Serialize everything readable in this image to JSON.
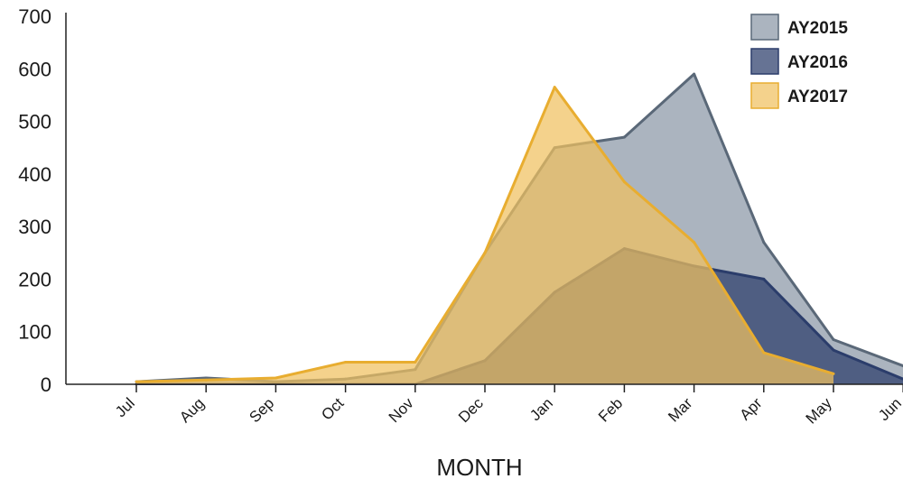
{
  "chart_data": {
    "type": "area",
    "categories": [
      "Jul",
      "Aug",
      "Sep",
      "Oct",
      "Nov",
      "Dec",
      "Jan",
      "Feb",
      "Mar",
      "Apr",
      "May",
      "Jun"
    ],
    "xlabel": "MONTH",
    "ylabel": "",
    "ylim": [
      0,
      700
    ],
    "yticks": [
      0,
      100,
      200,
      300,
      400,
      500,
      600,
      700
    ],
    "legend_position": "top-right",
    "series": [
      {
        "name": "AY2015",
        "color": "#8a97a6",
        "stroke": "#5a6878",
        "values": [
          5,
          12,
          5,
          10,
          28,
          250,
          450,
          470,
          590,
          270,
          85,
          35
        ]
      },
      {
        "name": "AY2016",
        "color": "#2b3d6b",
        "stroke": "#2b3d6b",
        "values": [
          0,
          0,
          0,
          0,
          0,
          45,
          175,
          258,
          225,
          200,
          65,
          10
        ]
      },
      {
        "name": "AY2017",
        "color": "#f0c060",
        "stroke": "#e8ad30",
        "values": [
          5,
          8,
          12,
          42,
          42,
          250,
          565,
          385,
          270,
          60,
          20,
          null
        ]
      }
    ]
  }
}
